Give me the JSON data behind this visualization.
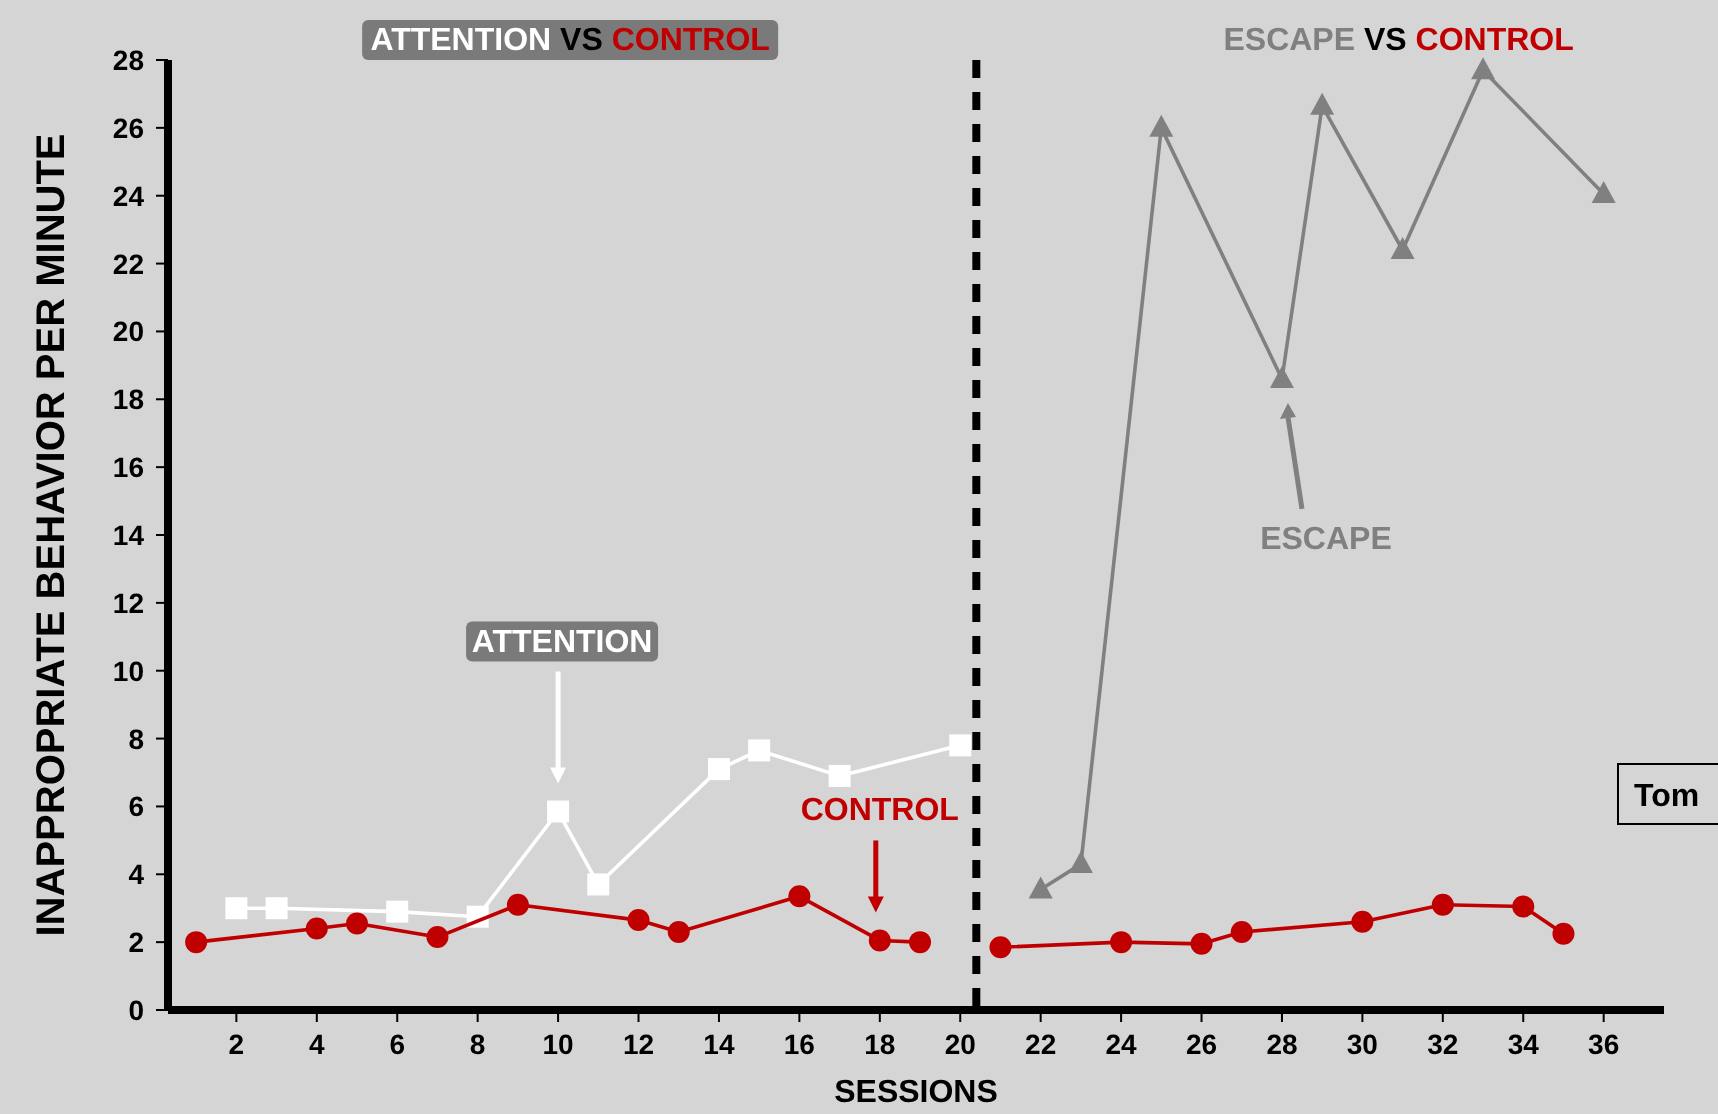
{
  "chart_data": {
    "type": "line",
    "xlabel": "SESSIONS",
    "ylabel": "INAPPROPRIATE BEHAVIOR PER MINUTE",
    "xlim": [
      0.3,
      37.5
    ],
    "ylim": [
      0,
      28
    ],
    "xticks": [
      2,
      4,
      6,
      8,
      10,
      12,
      14,
      16,
      18,
      20,
      22,
      24,
      26,
      28,
      30,
      32,
      34,
      36
    ],
    "yticks": [
      0,
      2,
      4,
      6,
      8,
      10,
      12,
      14,
      16,
      18,
      20,
      22,
      24,
      26,
      28
    ],
    "legend": false,
    "annotations": [
      "ATTENTION VS CONTROL",
      "ESCAPE VS CONTROL",
      "Tom"
    ],
    "ref_lines": [
      {
        "axis": "x",
        "value": 20.4,
        "color": "#000000",
        "line_style": "dashed"
      }
    ],
    "series": [
      {
        "name": "ATTENTION",
        "color": "#ffffff",
        "marker": "square",
        "x": [
          2,
          3,
          6,
          8,
          10,
          11,
          14,
          15,
          17,
          20
        ],
        "values": [
          3.0,
          3.0,
          2.9,
          2.75,
          5.85,
          3.7,
          7.1,
          7.65,
          6.9,
          7.8
        ]
      },
      {
        "name": "CONTROL",
        "color": "#c00000",
        "marker": "circle",
        "x": [
          1,
          4,
          5,
          7,
          9,
          12,
          13,
          16,
          18,
          19,
          20,
          21,
          24,
          26,
          27,
          30,
          32,
          34,
          35
        ],
        "values": [
          2.0,
          2.4,
          2.55,
          2.15,
          3.1,
          2.65,
          2.3,
          3.35,
          2.05,
          2.0,
          null,
          1.85,
          2.0,
          1.95,
          2.3,
          2.6,
          3.1,
          3.05,
          2.25
        ]
      },
      {
        "name": "ESCAPE",
        "color": "#808080",
        "marker": "triangle",
        "x": [
          22,
          23,
          25,
          28,
          29,
          31,
          33,
          36
        ],
        "values": [
          3.55,
          4.3,
          26.0,
          18.6,
          26.65,
          22.4,
          27.7,
          24.05
        ]
      }
    ]
  }
}
